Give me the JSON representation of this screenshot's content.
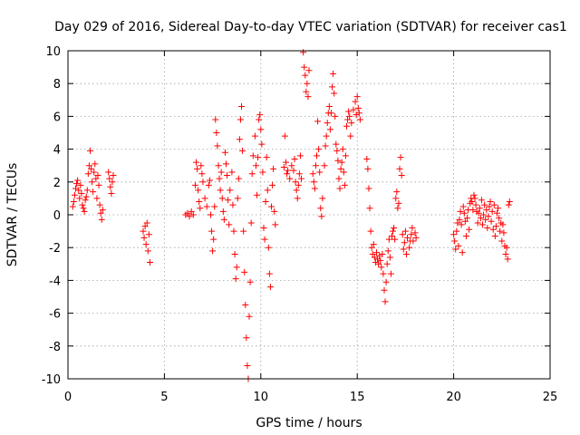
{
  "chart_data": {
    "type": "scatter",
    "title": "Day 029 of 2016, Sidereal Day-to-day VTEC variation (SDTVAR) for receiver cas1",
    "xlabel": "GPS time / hours",
    "ylabel": "SDTVAR / TECUs",
    "xlim": [
      0,
      25
    ],
    "ylim": [
      -10,
      10
    ],
    "x_ticks": [
      "0",
      "5",
      "10",
      "15",
      "20",
      "25"
    ],
    "y_ticks": [
      "-10",
      "-8",
      "-6",
      "-4",
      "-2",
      "0",
      "2",
      "4",
      "6",
      "8",
      "10"
    ],
    "grid": true,
    "marker": "+",
    "color": "#ff0000",
    "series": [
      {
        "name": "SDTVAR",
        "points": [
          [
            0.25,
            0.5
          ],
          [
            0.3,
            0.8
          ],
          [
            0.35,
            1.2
          ],
          [
            0.4,
            1.6
          ],
          [
            0.45,
            1.9
          ],
          [
            0.5,
            2.1
          ],
          [
            0.55,
            1.5
          ],
          [
            0.6,
            1.0
          ],
          [
            0.65,
            1.8
          ],
          [
            0.7,
            1.3
          ],
          [
            0.75,
            0.6
          ],
          [
            0.8,
            0.4
          ],
          [
            0.85,
            0.2
          ],
          [
            0.9,
            0.9
          ],
          [
            0.95,
            1.1
          ],
          [
            1.0,
            1.5
          ],
          [
            1.05,
            2.5
          ],
          [
            1.1,
            3.0
          ],
          [
            1.15,
            3.9
          ],
          [
            1.2,
            2.8
          ],
          [
            1.25,
            2.0
          ],
          [
            1.3,
            1.4
          ],
          [
            1.35,
            2.6
          ],
          [
            1.4,
            3.1
          ],
          [
            1.45,
            2.2
          ],
          [
            1.5,
            1.0
          ],
          [
            1.55,
            2.4
          ],
          [
            1.6,
            1.8
          ],
          [
            1.65,
            0.6
          ],
          [
            1.7,
            0.1
          ],
          [
            1.75,
            -0.3
          ],
          [
            1.8,
            0.3
          ],
          [
            2.1,
            2.6
          ],
          [
            2.15,
            2.2
          ],
          [
            2.2,
            1.7
          ],
          [
            2.25,
            1.3
          ],
          [
            2.3,
            2.0
          ],
          [
            2.35,
            2.4
          ],
          [
            3.9,
            -1.0
          ],
          [
            3.95,
            -1.4
          ],
          [
            4.0,
            -0.7
          ],
          [
            4.05,
            -1.8
          ],
          [
            4.1,
            -0.5
          ],
          [
            4.15,
            -2.2
          ],
          [
            4.2,
            -1.2
          ],
          [
            4.25,
            -2.9
          ],
          [
            6.1,
            0.0
          ],
          [
            6.2,
            0.1
          ],
          [
            6.3,
            -0.1
          ],
          [
            6.4,
            0.2
          ],
          [
            6.5,
            0.0
          ],
          [
            6.6,
            1.8
          ],
          [
            6.65,
            3.2
          ],
          [
            6.7,
            2.8
          ],
          [
            6.75,
            1.5
          ],
          [
            6.8,
            0.8
          ],
          [
            6.85,
            0.4
          ],
          [
            6.9,
            3.0
          ],
          [
            6.95,
            2.5
          ],
          [
            7.0,
            2.0
          ],
          [
            7.1,
            1.0
          ],
          [
            7.2,
            0.5
          ],
          [
            7.3,
            1.8
          ],
          [
            7.35,
            2.1
          ],
          [
            7.4,
            0.0
          ],
          [
            7.45,
            -1.0
          ],
          [
            7.5,
            -2.2
          ],
          [
            7.55,
            -1.5
          ],
          [
            7.6,
            0.5
          ],
          [
            7.65,
            5.8
          ],
          [
            7.7,
            5.0
          ],
          [
            7.75,
            4.2
          ],
          [
            7.8,
            3.0
          ],
          [
            7.85,
            2.2
          ],
          [
            7.9,
            1.5
          ],
          [
            7.95,
            2.6
          ],
          [
            8.0,
            1.0
          ],
          [
            8.05,
            0.2
          ],
          [
            8.1,
            -0.3
          ],
          [
            8.15,
            3.8
          ],
          [
            8.2,
            3.1
          ],
          [
            8.25,
            2.4
          ],
          [
            8.3,
            0.9
          ],
          [
            8.35,
            -0.6
          ],
          [
            8.4,
            1.5
          ],
          [
            8.5,
            2.6
          ],
          [
            8.55,
            0.6
          ],
          [
            8.6,
            -1.0
          ],
          [
            8.65,
            -2.4
          ],
          [
            8.7,
            -3.9
          ],
          [
            8.75,
            -3.2
          ],
          [
            8.8,
            1.0
          ],
          [
            8.85,
            2.2
          ],
          [
            8.9,
            4.6
          ],
          [
            8.95,
            5.8
          ],
          [
            9.0,
            6.6
          ],
          [
            9.05,
            3.9
          ],
          [
            9.1,
            -1.0
          ],
          [
            9.15,
            -3.5
          ],
          [
            9.2,
            -5.5
          ],
          [
            9.25,
            -7.5
          ],
          [
            9.3,
            -9.2
          ],
          [
            9.35,
            -10.0
          ],
          [
            9.4,
            -6.2
          ],
          [
            9.45,
            -4.1
          ],
          [
            9.5,
            -0.5
          ],
          [
            9.55,
            2.5
          ],
          [
            9.6,
            3.6
          ],
          [
            9.7,
            4.8
          ],
          [
            9.75,
            3.0
          ],
          [
            9.8,
            1.2
          ],
          [
            9.85,
            3.5
          ],
          [
            9.9,
            5.8
          ],
          [
            9.95,
            6.1
          ],
          [
            10.0,
            5.2
          ],
          [
            10.05,
            4.3
          ],
          [
            10.1,
            2.6
          ],
          [
            10.15,
            -0.8
          ],
          [
            10.2,
            -1.5
          ],
          [
            10.25,
            0.8
          ],
          [
            10.3,
            3.5
          ],
          [
            10.35,
            1.5
          ],
          [
            10.4,
            -2.0
          ],
          [
            10.45,
            -3.6
          ],
          [
            10.5,
            -4.4
          ],
          [
            10.55,
            0.5
          ],
          [
            10.6,
            1.8
          ],
          [
            10.65,
            2.8
          ],
          [
            10.7,
            0.2
          ],
          [
            10.75,
            -0.6
          ],
          [
            11.2,
            2.9
          ],
          [
            11.25,
            4.8
          ],
          [
            11.3,
            3.2
          ],
          [
            11.35,
            2.5
          ],
          [
            11.4,
            2.7
          ],
          [
            11.5,
            2.2
          ],
          [
            11.6,
            3.0
          ],
          [
            11.7,
            2.7
          ],
          [
            11.75,
            3.4
          ],
          [
            11.8,
            2.0
          ],
          [
            11.85,
            1.5
          ],
          [
            11.9,
            1.0
          ],
          [
            11.95,
            1.8
          ],
          [
            12.0,
            2.5
          ],
          [
            12.05,
            3.6
          ],
          [
            12.1,
            2.2
          ],
          [
            12.2,
            9.9
          ],
          [
            12.25,
            9.0
          ],
          [
            12.3,
            8.5
          ],
          [
            12.35,
            7.5
          ],
          [
            12.4,
            8.0
          ],
          [
            12.45,
            7.2
          ],
          [
            12.5,
            8.8
          ],
          [
            12.7,
            2.5
          ],
          [
            12.75,
            2.0
          ],
          [
            12.8,
            1.6
          ],
          [
            12.85,
            3.0
          ],
          [
            12.9,
            3.6
          ],
          [
            12.95,
            5.7
          ],
          [
            13.0,
            4.0
          ],
          [
            13.05,
            2.6
          ],
          [
            13.1,
            0.4
          ],
          [
            13.15,
            -0.1
          ],
          [
            13.2,
            1.0
          ],
          [
            13.3,
            3.0
          ],
          [
            13.35,
            4.2
          ],
          [
            13.4,
            4.8
          ],
          [
            13.45,
            5.6
          ],
          [
            13.5,
            6.2
          ],
          [
            13.55,
            6.6
          ],
          [
            13.6,
            5.2
          ],
          [
            13.65,
            6.2
          ],
          [
            13.7,
            7.8
          ],
          [
            13.75,
            8.6
          ],
          [
            13.8,
            7.4
          ],
          [
            13.85,
            6.0
          ],
          [
            13.9,
            4.3
          ],
          [
            13.95,
            3.9
          ],
          [
            14.0,
            3.3
          ],
          [
            14.05,
            2.2
          ],
          [
            14.1,
            1.6
          ],
          [
            14.15,
            2.8
          ],
          [
            14.2,
            3.2
          ],
          [
            14.25,
            4.0
          ],
          [
            14.3,
            2.6
          ],
          [
            14.35,
            1.8
          ],
          [
            14.4,
            3.6
          ],
          [
            14.45,
            5.4
          ],
          [
            14.5,
            5.8
          ],
          [
            14.55,
            6.3
          ],
          [
            14.6,
            6.0
          ],
          [
            14.65,
            4.8
          ],
          [
            14.7,
            5.6
          ],
          [
            14.8,
            6.4
          ],
          [
            14.9,
            6.9
          ],
          [
            14.95,
            6.1
          ],
          [
            15.0,
            7.2
          ],
          [
            15.05,
            6.5
          ],
          [
            15.1,
            6.2
          ],
          [
            15.15,
            5.8
          ],
          [
            15.5,
            3.4
          ],
          [
            15.55,
            2.8
          ],
          [
            15.6,
            1.6
          ],
          [
            15.65,
            0.4
          ],
          [
            15.7,
            -1.0
          ],
          [
            15.75,
            -2.0
          ],
          [
            15.8,
            -2.4
          ],
          [
            15.85,
            -1.8
          ],
          [
            15.9,
            -2.6
          ],
          [
            15.95,
            -2.9
          ],
          [
            16.0,
            -2.3
          ],
          [
            16.05,
            -2.7
          ],
          [
            16.1,
            -3.0
          ],
          [
            16.15,
            -2.5
          ],
          [
            16.2,
            -2.8
          ],
          [
            16.25,
            -3.2
          ],
          [
            16.3,
            -2.4
          ],
          [
            16.35,
            -3.6
          ],
          [
            16.4,
            -4.6
          ],
          [
            16.45,
            -5.3
          ],
          [
            16.5,
            -4.1
          ],
          [
            16.55,
            -3.0
          ],
          [
            16.6,
            -2.2
          ],
          [
            16.65,
            -1.5
          ],
          [
            16.7,
            -2.6
          ],
          [
            16.75,
            -3.6
          ],
          [
            16.8,
            -1.3
          ],
          [
            16.85,
            -1.0
          ],
          [
            16.9,
            -0.8
          ],
          [
            16.95,
            -1.5
          ],
          [
            17.0,
            1.0
          ],
          [
            17.05,
            1.4
          ],
          [
            17.1,
            0.4
          ],
          [
            17.15,
            0.7
          ],
          [
            17.2,
            2.8
          ],
          [
            17.25,
            3.5
          ],
          [
            17.3,
            2.4
          ],
          [
            17.35,
            -1.2
          ],
          [
            17.4,
            -2.1
          ],
          [
            17.45,
            -1.7
          ],
          [
            17.5,
            -1.0
          ],
          [
            17.55,
            -2.4
          ],
          [
            17.6,
            -1.4
          ],
          [
            17.7,
            -2.0
          ],
          [
            17.75,
            -1.6
          ],
          [
            17.8,
            -1.2
          ],
          [
            17.85,
            -0.8
          ],
          [
            17.9,
            -1.6
          ],
          [
            18.0,
            -1.1
          ],
          [
            18.05,
            -1.4
          ],
          [
            20.0,
            -1.2
          ],
          [
            20.05,
            -1.6
          ],
          [
            20.1,
            -2.1
          ],
          [
            20.15,
            -1.0
          ],
          [
            20.2,
            -0.5
          ],
          [
            20.25,
            -1.9
          ],
          [
            20.3,
            -0.3
          ],
          [
            20.35,
            0.2
          ],
          [
            20.4,
            -0.6
          ],
          [
            20.45,
            -2.3
          ],
          [
            20.5,
            0.5
          ],
          [
            20.55,
            0.1
          ],
          [
            20.6,
            -0.4
          ],
          [
            20.65,
            -1.3
          ],
          [
            20.7,
            -0.2
          ],
          [
            20.75,
            0.3
          ],
          [
            20.8,
            -0.9
          ],
          [
            20.85,
            0.7
          ],
          [
            20.9,
            1.0
          ],
          [
            20.95,
            0.8
          ],
          [
            21.0,
            0.3
          ],
          [
            21.05,
            1.2
          ],
          [
            21.1,
            1.0
          ],
          [
            21.15,
            0.6
          ],
          [
            21.2,
            0.2
          ],
          [
            21.25,
            -0.5
          ],
          [
            21.3,
            0.1
          ],
          [
            21.35,
            0.4
          ],
          [
            21.4,
            -0.2
          ],
          [
            21.45,
            0.9
          ],
          [
            21.5,
            -0.6
          ],
          [
            21.55,
            0.0
          ],
          [
            21.6,
            0.6
          ],
          [
            21.65,
            -0.3
          ],
          [
            21.7,
            0.3
          ],
          [
            21.75,
            -0.8
          ],
          [
            21.8,
            -0.1
          ],
          [
            21.85,
            0.5
          ],
          [
            21.9,
            0.8
          ],
          [
            21.95,
            -0.4
          ],
          [
            22.0,
            0.2
          ],
          [
            22.05,
            -0.9
          ],
          [
            22.1,
            0.6
          ],
          [
            22.15,
            -1.3
          ],
          [
            22.2,
            -0.7
          ],
          [
            22.25,
            0.1
          ],
          [
            22.3,
            0.4
          ],
          [
            22.35,
            -0.2
          ],
          [
            22.4,
            -1.0
          ],
          [
            22.45,
            -0.5
          ],
          [
            22.5,
            -1.6
          ],
          [
            22.55,
            -0.6
          ],
          [
            22.6,
            -1.1
          ],
          [
            22.65,
            -1.9
          ],
          [
            22.7,
            -2.4
          ],
          [
            22.75,
            -2.0
          ],
          [
            22.8,
            -2.7
          ],
          [
            22.85,
            0.6
          ],
          [
            22.9,
            0.8
          ]
        ]
      }
    ]
  }
}
